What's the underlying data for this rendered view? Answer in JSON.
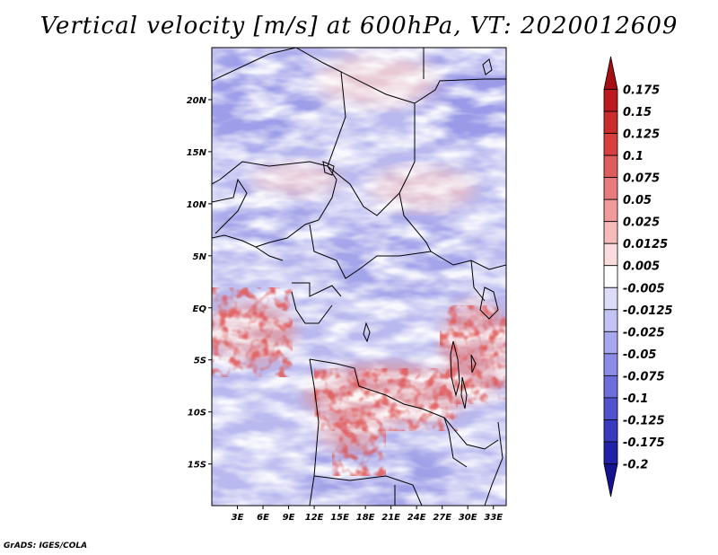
{
  "title": "Vertical velocity [m/s] at 600hPa, VT: 2020012609",
  "credit": "GrADS: IGES/COLA",
  "map": {
    "lon_range": [
      0,
      34.5
    ],
    "lat_range": [
      -19,
      25
    ],
    "lat_ticks": [
      {
        "value": 20,
        "label": "20N"
      },
      {
        "value": 15,
        "label": "15N"
      },
      {
        "value": 10,
        "label": "10N"
      },
      {
        "value": 5,
        "label": "5N"
      },
      {
        "value": 0,
        "label": "EQ"
      },
      {
        "value": -5,
        "label": "5S"
      },
      {
        "value": -10,
        "label": "10S"
      },
      {
        "value": -15,
        "label": "15S"
      }
    ],
    "lon_ticks": [
      {
        "value": 3,
        "label": "3E"
      },
      {
        "value": 6,
        "label": "6E"
      },
      {
        "value": 9,
        "label": "9E"
      },
      {
        "value": 12,
        "label": "12E"
      },
      {
        "value": 15,
        "label": "15E"
      },
      {
        "value": 18,
        "label": "18E"
      },
      {
        "value": 21,
        "label": "21E"
      },
      {
        "value": 24,
        "label": "24E"
      },
      {
        "value": 27,
        "label": "27E"
      },
      {
        "value": 30,
        "label": "30E"
      },
      {
        "value": 33,
        "label": "33E"
      }
    ]
  },
  "colorbar": {
    "levels": [
      "0.175",
      "0.15",
      "0.125",
      "0.1",
      "0.075",
      "0.05",
      "0.025",
      "0.0125",
      "0.005",
      "-0.005",
      "-0.0125",
      "-0.025",
      "-0.05",
      "-0.075",
      "-0.1",
      "-0.125",
      "-0.175",
      "-0.2"
    ],
    "colors": [
      "#a50f15",
      "#bd1a1f",
      "#cb2c2c",
      "#d84040",
      "#e05d5d",
      "#e87b7b",
      "#f09a9a",
      "#f5baba",
      "#fadcdc",
      "#ffffff",
      "#dcdcf8",
      "#c2c2f5",
      "#a8a8f0",
      "#8c8ce8",
      "#6e6edd",
      "#5252cf",
      "#3a3abf",
      "#2222a8",
      "#141490"
    ]
  }
}
